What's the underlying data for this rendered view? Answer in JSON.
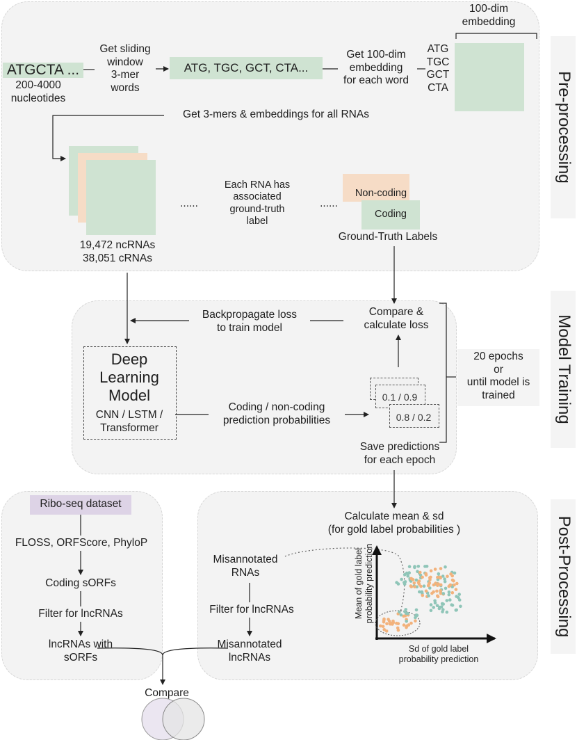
{
  "preprocessing": {
    "input_seq": "ATGCTA ...",
    "input_sub": "200-4000\nnucleotides",
    "sliding_text": "Get sliding\nwindow\n3-mer\nwords",
    "words_box": "ATG, TGC, GCT, CTA...",
    "get_embedding_text": "Get 100-dim\nembedding\nfor each word",
    "kmer_list": "ATG\nTGC\nGCT\nCTA",
    "embedding_label": "100-dim\nembedding",
    "all_rnas_text": "Get  3-mers & embeddings for all RNAs",
    "rna_counts": "19,472 ncRNAs\n38,051 cRNAs",
    "dots_left": "......",
    "each_rna_text": "Each RNA has\nassociated\nground-truth\nlabel",
    "dots_right": "......",
    "noncoding_label": "Non-coding",
    "coding_label": "Coding",
    "gt_labels": "Ground-Truth Labels"
  },
  "training": {
    "backprop_text": "Backpropagate loss\nto train model",
    "compare_text": "Compare &\ncalculate loss",
    "model_title": "Deep\nLearning\nModel",
    "model_sub": "CNN / LSTM /\nTransformer",
    "prediction_text": "Coding / non-coding\nprediction probabilities",
    "prob_a": "0.1 / 0.9",
    "prob_b": "0.8 / 0.2",
    "save_text": "Save predictions\nfor each epoch",
    "epochs_text": "20 epochs\nor\nuntil model is\ntrained"
  },
  "postprocessing": {
    "calc_text": "Calculate mean & sd\n(for gold label probabilities )",
    "misannotated_rnas": "Misannotated\nRNAs",
    "filter_right": "Filter for lncRNAs",
    "misannotated_lnc": "Misannotated\nlncRNAs",
    "y_axis_label": "Mean of gold label\nprobability prediction",
    "x_axis_label": "Sd of gold label\nprobability prediction"
  },
  "ribo": {
    "dataset": "Ribo-seq dataset",
    "tools": "FLOSS, ORFScore, PhyloP",
    "coding_sorfs": "Coding sORFs",
    "filter_left": "Filter for lncRNAs",
    "lnc_sorfs": "lncRNAs with\nsORFs"
  },
  "compare_label": "Compare",
  "side_labels": {
    "pre": "Pre-processing",
    "train": "Model Training",
    "post": "Post-Processing"
  },
  "colors": {
    "green": "#cfe3d2",
    "peach": "#f6dcc6",
    "lavender": "#ddd3e6",
    "panel": "#f3f3f3",
    "teal_dots": "#8fc5b8",
    "orange_dots": "#f2b27c"
  }
}
